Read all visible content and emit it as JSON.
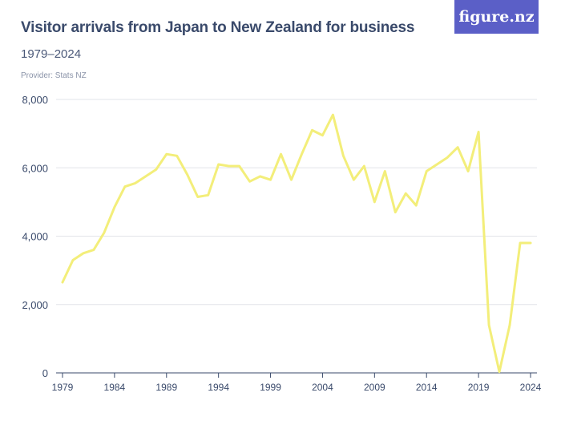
{
  "header": {
    "title": "Visitor arrivals from Japan to New Zealand for business",
    "subtitle": "1979–2024",
    "provider": "Provider: Stats NZ",
    "logo_text": "figure.nz"
  },
  "colors": {
    "series": "#f3ee7a",
    "logo_bg": "#5b5fc7",
    "text": "#3a4a6b"
  },
  "chart_data": {
    "type": "line",
    "title": "Visitor arrivals from Japan to New Zealand for business",
    "subtitle": "1979–2024",
    "xlabel": "",
    "ylabel": "",
    "ylim": [
      0,
      8000
    ],
    "xlim": [
      1979,
      2024
    ],
    "yticks": [
      "0",
      "2,000",
      "4,000",
      "6,000",
      "8,000"
    ],
    "ytick_values": [
      0,
      2000,
      4000,
      6000,
      8000
    ],
    "xticks": [
      "1979",
      "1984",
      "1989",
      "1994",
      "1999",
      "2004",
      "2009",
      "2014",
      "2019",
      "2024"
    ],
    "xtick_values": [
      1979,
      1984,
      1989,
      1994,
      1999,
      2004,
      2009,
      2014,
      2019,
      2024
    ],
    "grid": true,
    "legend": "none",
    "x": [
      1979,
      1980,
      1981,
      1982,
      1983,
      1984,
      1985,
      1986,
      1987,
      1988,
      1989,
      1990,
      1991,
      1992,
      1993,
      1994,
      1995,
      1996,
      1997,
      1998,
      1999,
      2000,
      2001,
      2002,
      2003,
      2004,
      2005,
      2006,
      2007,
      2008,
      2009,
      2010,
      2011,
      2012,
      2013,
      2014,
      2015,
      2016,
      2017,
      2018,
      2019,
      2020,
      2021,
      2022,
      2023,
      2024
    ],
    "series": [
      {
        "values": [
          2650,
          3300,
          3500,
          3600,
          4100,
          4850,
          5450,
          5550,
          5750,
          5950,
          6400,
          6350,
          5800,
          5150,
          5200,
          6100,
          6050,
          6050,
          5600,
          5750,
          5650,
          6400,
          5650,
          6400,
          7100,
          6950,
          7550,
          6350,
          5650,
          6050,
          5000,
          5900,
          4700,
          5250,
          4900,
          5900,
          6100,
          6300,
          6600,
          5900,
          7050,
          1400,
          30,
          1400,
          3800,
          3800
        ]
      }
    ]
  }
}
